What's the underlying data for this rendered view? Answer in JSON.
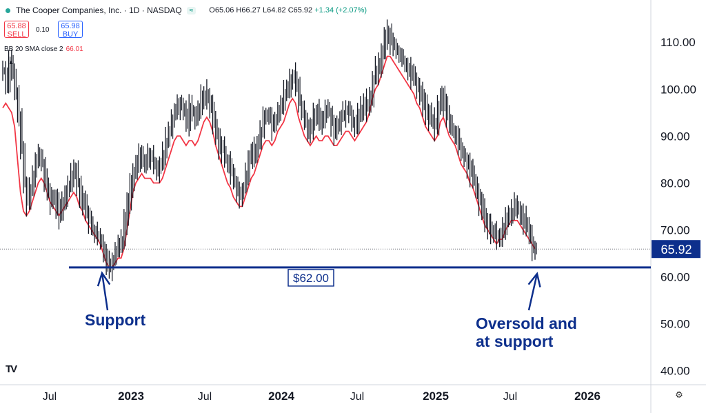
{
  "header": {
    "title": "The Cooper Companies, Inc. · 1D · NASDAQ",
    "badge": "≈",
    "ohlc": {
      "open": "O65.06",
      "high": "H66.27",
      "low": "L64.82",
      "close": "C65.92",
      "change": "+1.34 (+2.07%)"
    },
    "sell_price": "65.88",
    "sell_label": "SELL",
    "spread": "0.10",
    "buy_price": "65.98",
    "buy_label": "BUY",
    "indicator_label": "BB 20 SMA close 2",
    "indicator_value": "66.01",
    "collapse_icon": "chevron-up-icon",
    "logo_text": "TV",
    "settings_icon": "gear-icon"
  },
  "chart_data": {
    "type": "candlestick",
    "y_ticks": [
      "110.00",
      "100.00",
      "90.00",
      "80.00",
      "70.00",
      "60.00",
      "50.00",
      "40.00"
    ],
    "ylim": [
      37,
      119
    ],
    "x_ticks": [
      "Jul",
      "2023",
      "Jul",
      "2024",
      "Jul",
      "2025",
      "Jul",
      "2026"
    ],
    "x_ticks_bold": [
      "2023",
      "2024",
      "2025",
      "2026"
    ],
    "last_price_label": "65.92",
    "last_price": 65.92,
    "support_level": 62.0,
    "support_label": "$62.00",
    "annotations": [
      {
        "text": "Support",
        "arrow_target_series_index": 40
      },
      {
        "text": "Oversold and\nat support",
        "arrow_target_series_index": 206
      }
    ],
    "annotation_support": "Support",
    "annotation_oversold_1": "Oversold and",
    "annotation_oversold_2": "at support",
    "series": [
      {
        "kind": "price",
        "values": [
          104,
          101,
          106,
          103,
          99,
          94,
          87,
          80,
          76,
          79,
          82,
          85,
          86,
          84,
          80,
          78,
          76,
          77,
          75,
          73,
          76,
          78,
          80,
          82,
          83,
          80,
          76,
          77,
          73,
          72,
          70,
          69,
          68,
          67,
          65,
          63,
          62,
          64,
          66,
          67,
          68,
          72,
          76,
          80,
          82,
          84,
          86,
          85,
          84,
          86,
          85,
          84,
          83,
          84,
          86,
          89,
          91,
          94,
          95,
          97,
          96,
          95,
          93,
          96,
          95,
          94,
          96,
          98,
          99,
          98,
          96,
          93,
          90,
          88,
          87,
          85,
          84,
          82,
          80,
          78,
          77,
          79,
          82,
          85,
          87,
          86,
          89,
          91,
          94,
          95,
          94,
          92,
          94,
          96,
          97,
          99,
          100,
          102,
          103,
          101,
          97,
          95,
          93,
          91,
          92,
          94,
          95,
          93,
          94,
          96,
          95,
          93,
          91,
          92,
          94,
          95,
          96,
          95,
          93,
          92,
          94,
          96,
          97,
          96,
          98,
          102,
          104,
          105,
          108,
          111,
          112,
          110,
          109,
          108,
          107,
          106,
          105,
          104,
          103,
          102,
          100,
          99,
          97,
          95,
          94,
          93,
          92,
          96,
          99,
          97,
          94,
          92,
          91,
          90,
          88,
          86,
          85,
          84,
          82,
          80,
          78,
          76,
          74,
          72,
          71,
          70,
          69,
          68,
          69,
          70,
          72,
          73,
          74,
          75,
          74,
          73,
          72,
          70,
          68,
          66,
          66
        ],
        "color": "#131722"
      },
      {
        "kind": "bb_basis",
        "values": [
          96,
          97,
          96,
          95,
          92,
          85,
          78,
          74,
          73,
          74,
          76,
          78,
          80,
          81,
          80,
          78,
          76,
          75,
          74,
          73,
          74,
          75,
          76,
          77,
          78,
          77,
          75,
          74,
          72,
          71,
          70,
          69,
          68,
          67,
          65,
          63,
          62,
          62,
          63,
          64,
          64,
          66,
          70,
          74,
          78,
          80,
          81,
          82,
          81,
          81,
          81,
          80,
          80,
          80,
          81,
          83,
          85,
          87,
          89,
          90,
          90,
          89,
          88,
          89,
          89,
          88,
          89,
          91,
          93,
          94,
          93,
          91,
          88,
          86,
          84,
          82,
          80,
          79,
          77,
          76,
          75,
          75,
          77,
          79,
          81,
          82,
          84,
          86,
          88,
          89,
          89,
          88,
          89,
          91,
          92,
          93,
          95,
          97,
          98,
          97,
          94,
          92,
          90,
          89,
          88,
          89,
          90,
          89,
          89,
          90,
          90,
          89,
          88,
          88,
          89,
          90,
          91,
          91,
          90,
          89,
          90,
          91,
          92,
          93,
          95,
          98,
          100,
          101,
          103,
          105,
          107,
          107,
          106,
          105,
          104,
          103,
          102,
          101,
          100,
          99,
          97,
          96,
          94,
          92,
          91,
          90,
          89,
          90,
          93,
          94,
          92,
          90,
          89,
          88,
          86,
          84,
          83,
          82,
          80,
          79,
          77,
          75,
          73,
          71,
          70,
          69,
          68,
          67,
          68,
          68,
          70,
          71,
          72,
          72,
          72,
          71,
          70,
          69,
          68,
          67,
          66
        ],
        "color": "#f23645"
      }
    ]
  }
}
